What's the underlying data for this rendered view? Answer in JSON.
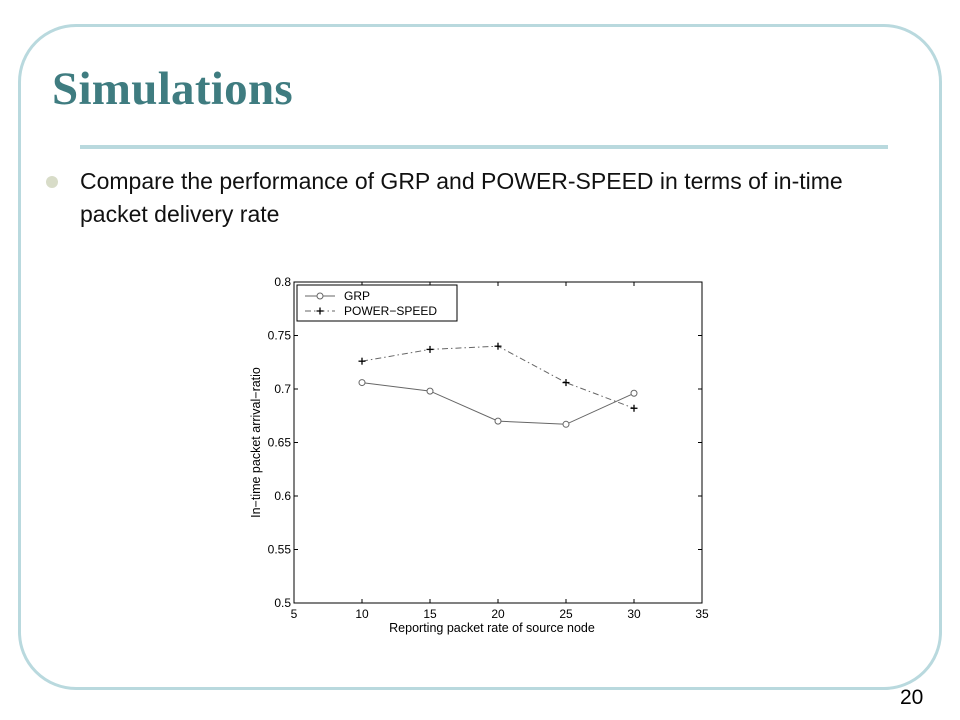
{
  "slide": {
    "title": "Simulations",
    "bullet": "Compare the performance of GRP and POWER-SPEED in terms of in-time packet delivery rate",
    "page_number": "20",
    "colors": {
      "title": "#3f7c80",
      "frame": "#b9d9de",
      "bullet": "#d8dcc8"
    }
  },
  "chart_data": {
    "type": "line",
    "title": "",
    "xlabel": "Reporting packet rate of source node",
    "ylabel": "In−time packet arrival−ratio",
    "xlim": [
      5,
      35
    ],
    "ylim": [
      0.5,
      0.8
    ],
    "xticks": [
      5,
      10,
      15,
      20,
      25,
      30,
      35
    ],
    "xtick_labels": [
      "5",
      "10",
      "15",
      "20",
      "25",
      "30",
      "35"
    ],
    "yticks": [
      0.5,
      0.55,
      0.6,
      0.65,
      0.7,
      0.75,
      0.8
    ],
    "ytick_labels": [
      "0.5",
      "0.55",
      "0.6",
      "0.65",
      "0.7",
      "0.75",
      "0.8"
    ],
    "grid": false,
    "legend_position": "top-left",
    "x": [
      10,
      15,
      20,
      25,
      30
    ],
    "series": [
      {
        "name": "GRP",
        "values": [
          0.706,
          0.698,
          0.67,
          0.667,
          0.696
        ],
        "marker": "circle",
        "line": "solid",
        "color": "#666666"
      },
      {
        "name": "POWER−SPEED",
        "values": [
          0.726,
          0.737,
          0.74,
          0.706,
          0.682
        ],
        "marker": "plus",
        "line": "dashdot",
        "color": "#666666"
      }
    ]
  }
}
